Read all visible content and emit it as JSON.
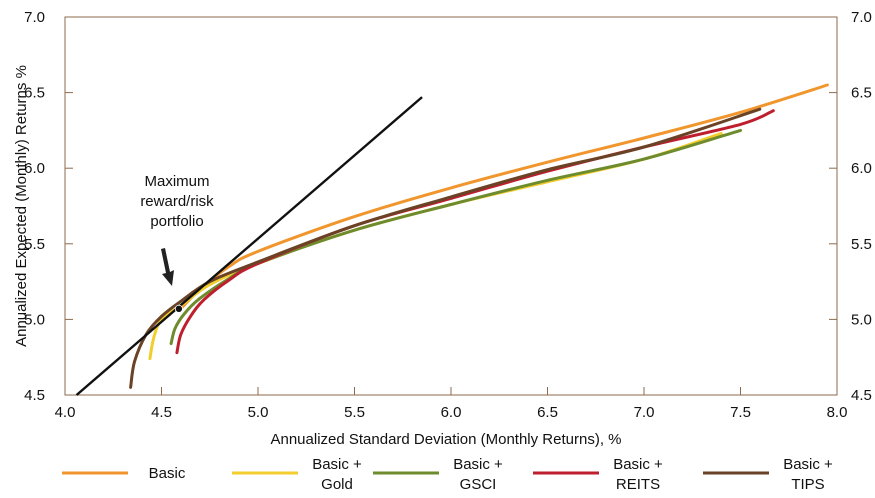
{
  "chart_data": {
    "type": "line",
    "title": "",
    "xlabel": "Annualized Standard Deviation (Monthly Returns), %",
    "ylabel": "Annualized Expected (Monthly) Returns %",
    "xlim": [
      4.0,
      8.0
    ],
    "ylim": [
      4.5,
      7.0
    ],
    "x_ticks": [
      "4.0",
      "4.5",
      "5.0",
      "5.5",
      "6.0",
      "6.5",
      "7.0",
      "7.5",
      "8.0"
    ],
    "y_ticks": [
      "4.5",
      "5.0",
      "5.5",
      "6.0",
      "6.5",
      "7.0"
    ],
    "grid": false,
    "legend_position": "bottom",
    "series": [
      {
        "name": "Basic",
        "color": "#F0962D",
        "points": [
          [
            4.6,
            5.07
          ],
          [
            4.7,
            5.2
          ],
          [
            4.85,
            5.35
          ],
          [
            5.0,
            5.45
          ],
          [
            5.5,
            5.68
          ],
          [
            6.0,
            5.87
          ],
          [
            6.5,
            6.04
          ],
          [
            7.0,
            6.2
          ],
          [
            7.5,
            6.37
          ],
          [
            7.95,
            6.55
          ]
        ]
      },
      {
        "name": "Basic +\nGold",
        "color": "#F2CD2C",
        "points": [
          [
            4.44,
            4.74
          ],
          [
            4.46,
            4.88
          ],
          [
            4.5,
            5.0
          ],
          [
            4.6,
            5.09
          ],
          [
            4.75,
            5.23
          ],
          [
            5.0,
            5.37
          ],
          [
            5.5,
            5.59
          ],
          [
            6.0,
            5.76
          ],
          [
            6.5,
            5.91
          ],
          [
            7.0,
            6.06
          ],
          [
            7.4,
            6.23
          ]
        ]
      },
      {
        "name": "Basic +\nGSCI",
        "color": "#6E8B2E",
        "points": [
          [
            4.55,
            4.84
          ],
          [
            4.57,
            4.94
          ],
          [
            4.62,
            5.04
          ],
          [
            4.7,
            5.14
          ],
          [
            4.85,
            5.27
          ],
          [
            5.0,
            5.37
          ],
          [
            5.5,
            5.59
          ],
          [
            6.0,
            5.76
          ],
          [
            6.5,
            5.92
          ],
          [
            7.0,
            6.06
          ],
          [
            7.5,
            6.25
          ]
        ]
      },
      {
        "name": "Basic +\nREITS",
        "color": "#BE1E2D",
        "points": [
          [
            4.58,
            4.78
          ],
          [
            4.6,
            4.9
          ],
          [
            4.65,
            5.02
          ],
          [
            4.72,
            5.13
          ],
          [
            4.85,
            5.26
          ],
          [
            5.0,
            5.37
          ],
          [
            5.5,
            5.62
          ],
          [
            6.0,
            5.8
          ],
          [
            6.5,
            5.98
          ],
          [
            7.0,
            6.14
          ],
          [
            7.5,
            6.29
          ],
          [
            7.67,
            6.38
          ]
        ]
      },
      {
        "name": "Basic +\nTIPS",
        "color": "#6A4225",
        "points": [
          [
            4.34,
            4.55
          ],
          [
            4.36,
            4.72
          ],
          [
            4.42,
            4.9
          ],
          [
            4.5,
            5.02
          ],
          [
            4.6,
            5.12
          ],
          [
            4.75,
            5.25
          ],
          [
            5.0,
            5.38
          ],
          [
            5.5,
            5.62
          ],
          [
            6.0,
            5.81
          ],
          [
            6.5,
            5.99
          ],
          [
            7.0,
            6.14
          ],
          [
            7.6,
            6.39
          ]
        ]
      }
    ],
    "capital_market_line": {
      "color": "#111111",
      "points": [
        [
          4.06,
          4.5
        ],
        [
          5.85,
          6.47
        ]
      ]
    },
    "tangency_point": [
      4.59,
      5.07
    ],
    "annotation": {
      "text": "Maximum\nreward/risk\nportfolio"
    }
  }
}
